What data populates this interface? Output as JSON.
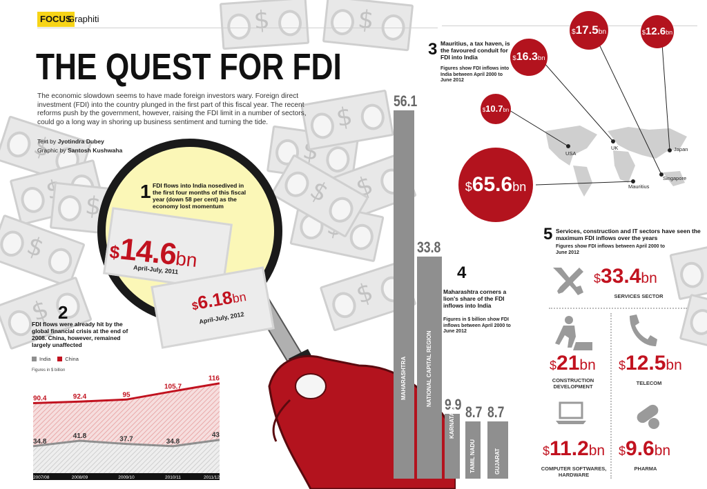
{
  "header": {
    "tag": "FOCUS",
    "section": "Graphiti"
  },
  "title": "THE QUEST FOR FDI",
  "intro": "The economic slowdown seems to have made foreign investors wary. Foreign direct investment (FDI) into the country plunged in the first part of this fiscal year. The recent reforms push by the government, however, raising the FDI limit in a number of sectors, could go a long way in shoring up business sentiment and turning the tide.",
  "credits": {
    "text_prefix": "Text by",
    "text_author": "Jyotindra Dubey",
    "graphic_prefix": "Graphic by",
    "graphic_author": "Santosh Kushwaha"
  },
  "point1": {
    "num": "1",
    "text": "FDI flows into India nosedived in the first four months of this fiscal year (down 58 per cent) as the economy lost momentum",
    "val1": "14.6",
    "unit1": "bn",
    "period1": "April-July, 2011",
    "val2": "6.18",
    "unit2": "bn",
    "period2": "April-July, 2012"
  },
  "point2": {
    "num": "2",
    "text": "FDI flows were already hit by the global financial crisis at the end of 2008. China, however, remained largely unaffected",
    "legend_india": "India",
    "legend_china": "China",
    "note": "Figures in $ billion"
  },
  "point3": {
    "num": "3",
    "text": "Mauritius, a tax haven, is the favoured conduit for FDI into India",
    "note": "Figures show FDI inflows into India between April 2000 to June 2012"
  },
  "point4": {
    "num": "4",
    "text": "Maharashtra corners a lion's share of the FDI inflows into India",
    "note": "Figures in $ billion show FDI inflows between April 2000 to June 2012"
  },
  "point5": {
    "num": "5",
    "text": "Services, construction and IT sectors have seen the maximum FDI inflows over the years",
    "note": "Figures show FDI inflows between April 2000 to June 2012"
  },
  "currency": "$",
  "countries": [
    {
      "name": "Mauritius",
      "value": "65.6",
      "unit": "bn"
    },
    {
      "name": "Singapore",
      "value": "17.5",
      "unit": "bn"
    },
    {
      "name": "Japan",
      "value": "12.6",
      "unit": "bn"
    },
    {
      "name": "UK",
      "value": "16.3",
      "unit": "bn"
    },
    {
      "name": "USA",
      "value": "10.7",
      "unit": "bn"
    }
  ],
  "sectors": [
    {
      "name": "SERVICES SECTOR",
      "value": "33.4",
      "unit": "bn",
      "icon": "tools-icon"
    },
    {
      "name": "CONSTRUCTION DEVELOPMENT",
      "value": "21",
      "unit": "bn",
      "icon": "worker-icon"
    },
    {
      "name": "TELECOM",
      "value": "12.5",
      "unit": "bn",
      "icon": "phone-icon"
    },
    {
      "name": "COMPUTER SOFTWARES, HARDWARE",
      "value": "11.2",
      "unit": "bn",
      "icon": "laptop-icon"
    },
    {
      "name": "PHARMA",
      "value": "9.6",
      "unit": "bn",
      "icon": "pill-icon"
    }
  ],
  "colors": {
    "red": "#c1121f",
    "grey": "#8f8f8f",
    "yellow": "#f7d417"
  },
  "chart_data": [
    {
      "type": "line",
      "categories": [
        "2007/08",
        "2008/09",
        "2009/10",
        "2010/11",
        "2011/12"
      ],
      "series": [
        {
          "name": "India",
          "values": [
            34.8,
            41.8,
            37.7,
            34.8,
            43
          ],
          "labels": [
            "34.8",
            "41.8",
            "37.7",
            "34.8",
            "43"
          ]
        },
        {
          "name": "China",
          "values": [
            90.4,
            92.4,
            95,
            105.7,
            116
          ],
          "labels": [
            "90.4",
            "92.4",
            "95",
            "105.7",
            "116"
          ]
        }
      ],
      "ylim": [
        0,
        130
      ]
    },
    {
      "type": "bar",
      "categories": [
        "MAHARASHTRA",
        "NATIONAL CAPITAL REGION",
        "KARNATAKA",
        "TAMIL NADU",
        "GUJARAT"
      ],
      "values": [
        56.1,
        33.8,
        9.9,
        8.7,
        8.7
      ],
      "labels": [
        "56.1",
        "33.8",
        "9.9",
        "8.7",
        "8.7"
      ]
    }
  ]
}
